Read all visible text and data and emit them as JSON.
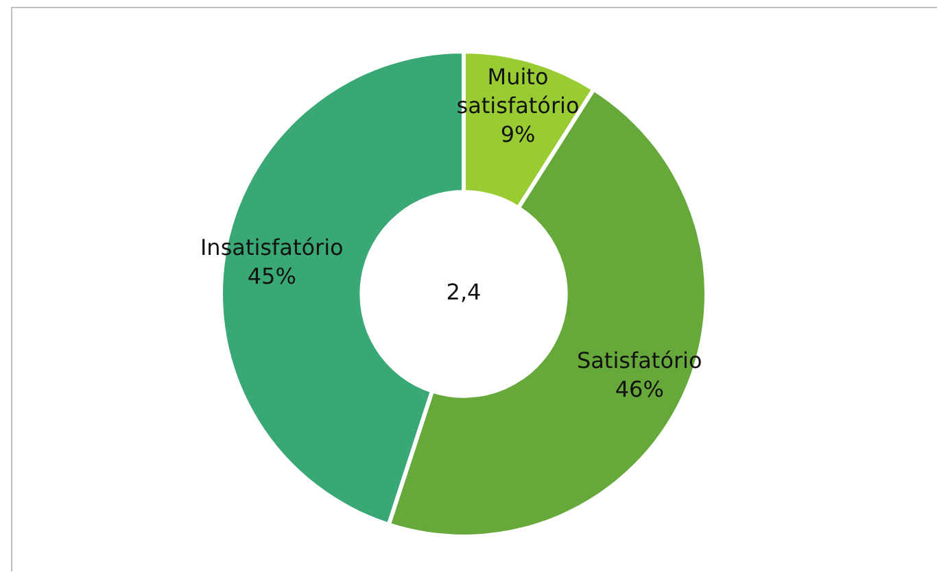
{
  "chart_data": {
    "type": "donut",
    "categories": [
      "Muito satisfatório",
      "Satisfatório",
      "Insatisfatório"
    ],
    "values": [
      9,
      46,
      45
    ],
    "colors": [
      "#99cc33",
      "#66a83a",
      "#3aa874"
    ],
    "annotations": [
      "2,4"
    ],
    "value_labels": [
      "9%",
      "46%",
      "45%"
    ],
    "legend": false
  }
}
